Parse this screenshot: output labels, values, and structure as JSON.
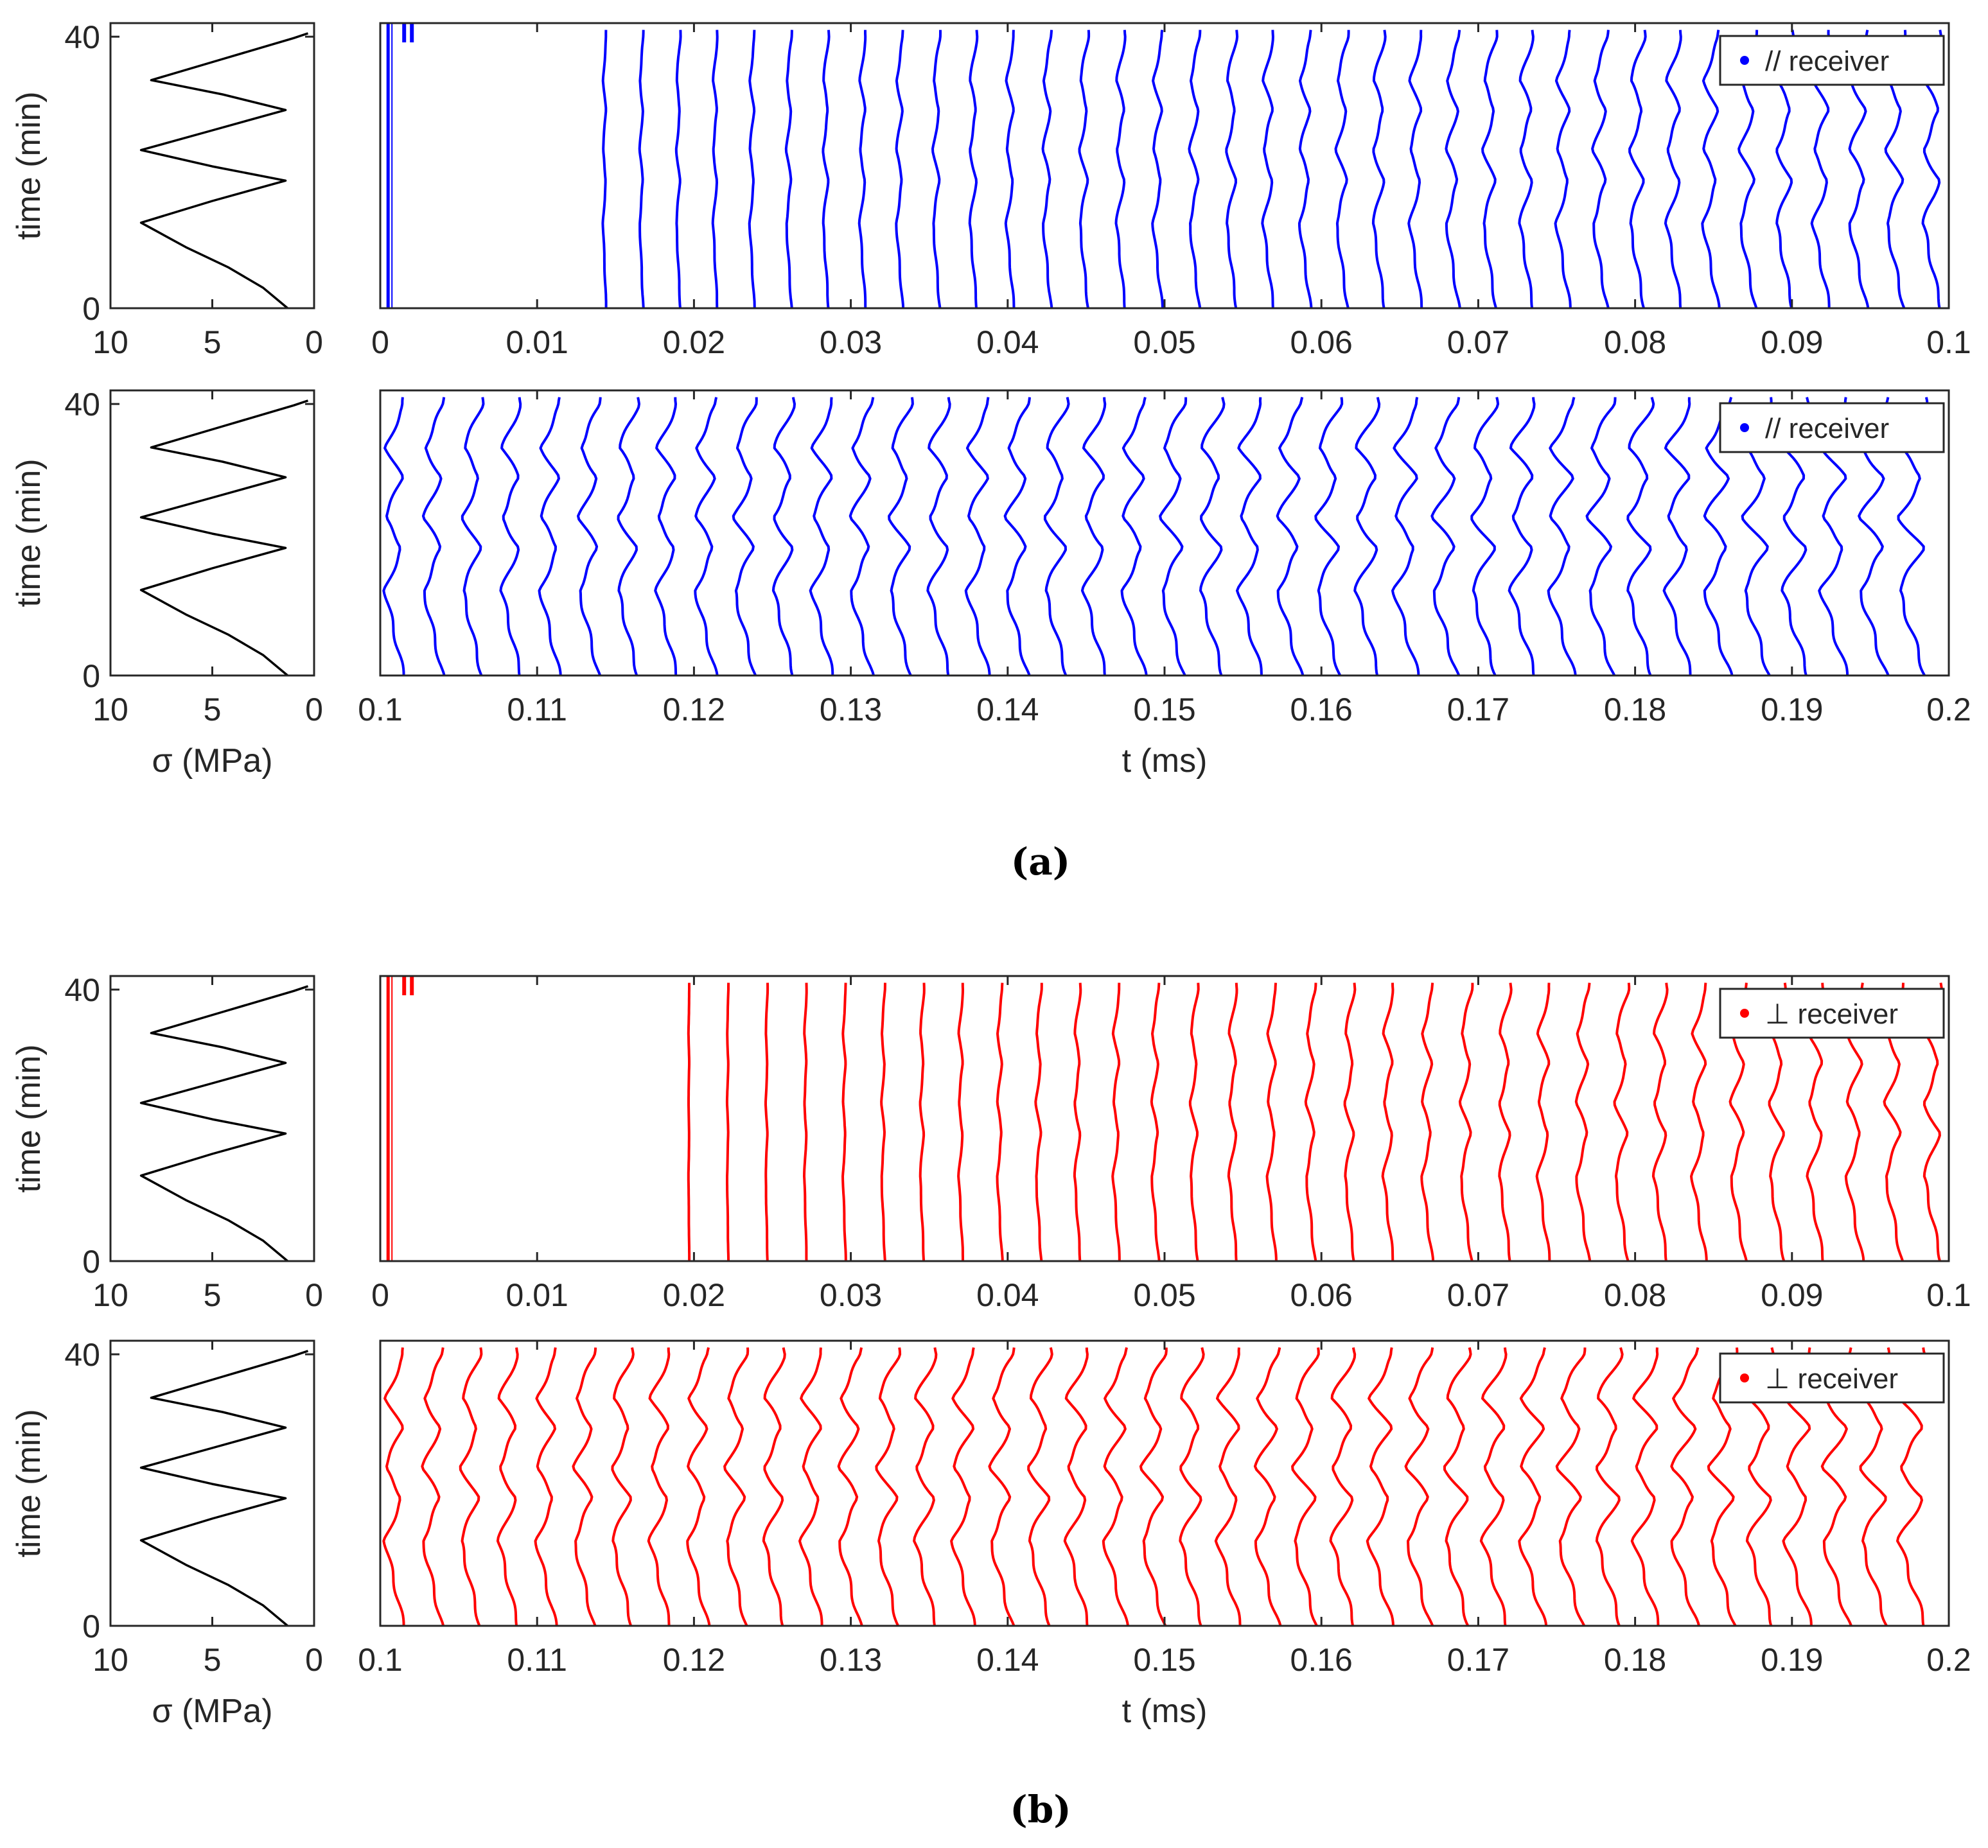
{
  "figure": {
    "caption_a": "(a)",
    "caption_b": "(b)",
    "colors": {
      "parallel": "#0000ff",
      "perpendicular": "#ff0000",
      "stress": "#000000",
      "axes": "#262626"
    }
  },
  "chart_data": [
    {
      "id": "stress_a1",
      "type": "line",
      "panel": "a",
      "xlabel": "",
      "ylabel": "time (min)",
      "xlim": [
        10,
        0
      ],
      "xreversed": true,
      "ylim": [
        0,
        42
      ],
      "xticks": [
        10,
        5,
        0
      ],
      "xtick_labels": [
        "10",
        "5",
        "0"
      ],
      "yticks": [
        0,
        40
      ],
      "ytick_labels": [
        "0",
        "40"
      ],
      "series": [
        {
          "name": "stress",
          "x": [
            1.3,
            2.5,
            4.2,
            6.3,
            8.5,
            5.0,
            1.4,
            5.0,
            8.5,
            5.0,
            1.4,
            4.5,
            8.0,
            4.5,
            1.0,
            0.3
          ],
          "y": [
            0,
            3,
            6,
            9,
            12.6,
            15.8,
            18.8,
            20.9,
            23.3,
            26.2,
            29.2,
            31.5,
            33.6,
            36.7,
            39.8,
            40.5
          ]
        }
      ]
    },
    {
      "id": "traces_a1",
      "type": "line",
      "panel": "a",
      "title": "",
      "xlabel": "",
      "ylabel": "",
      "xlim": [
        0,
        0.1
      ],
      "ylim": [
        0,
        42
      ],
      "xticks": [
        0,
        0.01,
        0.02,
        0.03,
        0.04,
        0.05,
        0.06,
        0.07,
        0.08,
        0.09,
        0.1
      ],
      "xtick_labels": [
        "0",
        "0.01",
        "0.02",
        "0.03",
        "0.04",
        "0.05",
        "0.06",
        "0.07",
        "0.08",
        "0.09",
        "0.1"
      ],
      "legend": {
        "label": "// receiver",
        "location": "top-right"
      },
      "series_color": "parallel",
      "contours": {
        "first": 0.0144,
        "last": 0.0995,
        "count": 37,
        "amp_start": 0.0002,
        "amp_end": 0.00115,
        "gap_range": [
          0.0005,
          0.014
        ]
      }
    },
    {
      "id": "stress_a2",
      "type": "line",
      "panel": "a",
      "xlabel": "σ (MPa)",
      "ylabel": "time (min)",
      "xlim": [
        10,
        0
      ],
      "xreversed": true,
      "ylim": [
        0,
        42
      ],
      "xticks": [
        10,
        5,
        0
      ],
      "xtick_labels": [
        "10",
        "5",
        "0"
      ],
      "yticks": [
        0,
        40
      ],
      "ytick_labels": [
        "0",
        "40"
      ],
      "series": [
        {
          "name": "stress",
          "x": [
            1.3,
            2.5,
            4.2,
            6.3,
            8.5,
            5.0,
            1.4,
            5.0,
            8.5,
            5.0,
            1.4,
            4.5,
            8.0,
            4.5,
            1.0,
            0.3
          ],
          "y": [
            0,
            3,
            6,
            9,
            12.6,
            15.8,
            18.8,
            20.9,
            23.3,
            26.2,
            29.2,
            31.5,
            33.6,
            36.7,
            39.8,
            40.5
          ]
        }
      ]
    },
    {
      "id": "traces_a2",
      "type": "line",
      "panel": "a",
      "title": "",
      "xlabel": "t (ms)",
      "ylabel": "",
      "xlim": [
        0.1,
        0.2
      ],
      "ylim": [
        0,
        42
      ],
      "xticks": [
        0.1,
        0.11,
        0.12,
        0.13,
        0.14,
        0.15,
        0.16,
        0.17,
        0.18,
        0.19,
        0.2
      ],
      "xtick_labels": [
        "0.1",
        "0.11",
        "0.12",
        "0.13",
        "0.14",
        "0.15",
        "0.16",
        "0.17",
        "0.18",
        "0.19",
        "0.2"
      ],
      "legend": {
        "label": "// receiver",
        "location": "top-right"
      },
      "series_color": "parallel",
      "contours": {
        "first": 0.1015,
        "last": 0.1985,
        "count": 40,
        "amp_start": 0.0012,
        "amp_end": 0.0017,
        "gap_range": null
      }
    },
    {
      "id": "stress_b1",
      "type": "line",
      "panel": "b",
      "xlabel": "",
      "ylabel": "time (min)",
      "xlim": [
        10,
        0
      ],
      "xreversed": true,
      "ylim": [
        0,
        42
      ],
      "xticks": [
        10,
        5,
        0
      ],
      "xtick_labels": [
        "10",
        "5",
        "0"
      ],
      "yticks": [
        0,
        40
      ],
      "ytick_labels": [
        "0",
        "40"
      ],
      "series": [
        {
          "name": "stress",
          "x": [
            1.3,
            2.5,
            4.2,
            6.3,
            8.5,
            5.0,
            1.4,
            5.0,
            8.5,
            5.0,
            1.4,
            4.5,
            8.0,
            4.5,
            1.0,
            0.3
          ],
          "y": [
            0,
            3,
            6,
            9,
            12.6,
            15.8,
            18.8,
            20.9,
            23.3,
            26.2,
            29.2,
            31.5,
            33.6,
            36.7,
            39.8,
            40.5
          ]
        }
      ]
    },
    {
      "id": "traces_b1",
      "type": "line",
      "panel": "b",
      "title": "",
      "xlabel": "",
      "ylabel": "",
      "xlim": [
        0,
        0.1
      ],
      "ylim": [
        0,
        42
      ],
      "xticks": [
        0,
        0.01,
        0.02,
        0.03,
        0.04,
        0.05,
        0.06,
        0.07,
        0.08,
        0.09,
        0.1
      ],
      "xtick_labels": [
        "0",
        "0.01",
        "0.02",
        "0.03",
        "0.04",
        "0.05",
        "0.06",
        "0.07",
        "0.08",
        "0.09",
        "0.1"
      ],
      "legend": {
        "label": "⊥ receiver",
        "location": "top-right"
      },
      "series_color": "perpendicular",
      "contours": {
        "first": 0.0197,
        "last": 0.0995,
        "count": 33,
        "amp_start": 5e-05,
        "amp_end": 0.0011,
        "gap_range": [
          0.0005,
          0.0195
        ]
      }
    },
    {
      "id": "stress_b2",
      "type": "line",
      "panel": "b",
      "xlabel": "σ (MPa)",
      "ylabel": "time (min)",
      "xlim": [
        10,
        0
      ],
      "xreversed": true,
      "ylim": [
        0,
        42
      ],
      "xticks": [
        10,
        5,
        0
      ],
      "xtick_labels": [
        "10",
        "5",
        "0"
      ],
      "yticks": [
        0,
        40
      ],
      "ytick_labels": [
        "0",
        "40"
      ],
      "series": [
        {
          "name": "stress",
          "x": [
            1.3,
            2.5,
            4.2,
            6.3,
            8.5,
            5.0,
            1.4,
            5.0,
            8.5,
            5.0,
            1.4,
            4.5,
            8.0,
            4.5,
            1.0,
            0.3
          ],
          "y": [
            0,
            3,
            6,
            9,
            12.6,
            15.8,
            18.8,
            20.9,
            23.3,
            26.2,
            29.2,
            31.5,
            33.6,
            36.7,
            39.8,
            40.5
          ]
        }
      ]
    },
    {
      "id": "traces_b2",
      "type": "line",
      "panel": "b",
      "title": "",
      "xlabel": "t (ms)",
      "ylabel": "",
      "xlim": [
        0.1,
        0.2
      ],
      "ylim": [
        0,
        42
      ],
      "xticks": [
        0.1,
        0.11,
        0.12,
        0.13,
        0.14,
        0.15,
        0.16,
        0.17,
        0.18,
        0.19,
        0.2
      ],
      "xtick_labels": [
        "0.1",
        "0.11",
        "0.12",
        "0.13",
        "0.14",
        "0.15",
        "0.16",
        "0.17",
        "0.18",
        "0.19",
        "0.2"
      ],
      "legend": {
        "label": "⊥ receiver",
        "location": "top-right"
      },
      "series_color": "perpendicular",
      "contours": {
        "first": 0.1015,
        "last": 0.1985,
        "count": 41,
        "amp_start": 0.0012,
        "amp_end": 0.0017,
        "gap_range": null
      }
    }
  ]
}
